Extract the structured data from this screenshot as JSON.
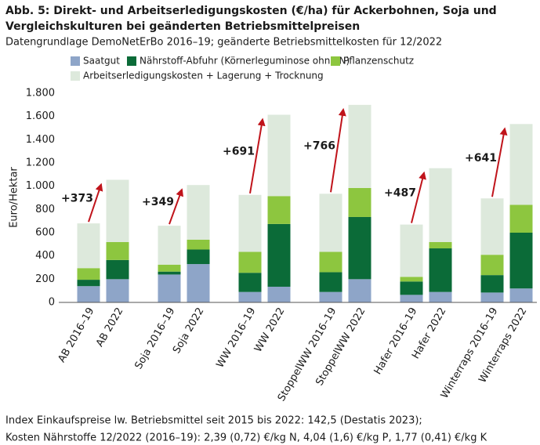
{
  "chart_data": {
    "type": "stacked_bar",
    "title": [
      "Abb. 5: Direkt- und Arbeitserledigungskosten (€/ha) für Ackerbohnen, Soja und",
      "Vergleichskulturen bei geänderten Betriebsmittelpreisen"
    ],
    "subtitle": "Datengrundlage DemoNetErBo 2016–19; geänderte Betriebsmittelkosten für 12/2022",
    "y_label": "Euro/Hektar",
    "categories": [
      "AB 2016–19",
      "AB 2022",
      "Soja 2016–19",
      "Soja 2022",
      "WW 2016–19",
      "WW 2022",
      "StoppelWW 2016–19",
      "StoppelWW 2022",
      "Hafer 2016–19",
      "Hafer 2022",
      "Winterraps 2016–19",
      "Winterraps 2022"
    ],
    "series": [
      {
        "name": "Saatgut",
        "color": "#8ea5c8",
        "values": [
          140,
          200,
          240,
          330,
          90,
          135,
          90,
          200,
          65,
          90,
          85,
          120
        ]
      },
      {
        "name": "Nährstoff-Abfuhr (Körnerleguminose ohne N)",
        "color": "#0b6b38",
        "values": [
          55,
          165,
          25,
          125,
          165,
          540,
          170,
          535,
          115,
          375,
          150,
          480
        ]
      },
      {
        "name": "Pflanzenschutz",
        "color": "#8dc63f",
        "values": [
          100,
          155,
          60,
          85,
          180,
          240,
          175,
          250,
          40,
          55,
          175,
          240
        ]
      },
      {
        "name": "Arbeitserledigungskosten + Lagerung + Trocknung",
        "color": "#dde9dc",
        "values": [
          385,
          535,
          335,
          470,
          490,
          700,
          500,
          715,
          450,
          635,
          485,
          695
        ]
      }
    ],
    "annotations": [
      "+373",
      "+349",
      "+691",
      "+766",
      "+487",
      "+641"
    ],
    "arrow_color": "#c0141b",
    "ylim": [
      0,
      1800
    ],
    "yticks": [
      0,
      200,
      400,
      600,
      800,
      {
        "value": 1000,
        "label": "1.000"
      },
      {
        "value": 1200,
        "label": "1.200"
      },
      {
        "value": 1400,
        "label": "1.400"
      },
      {
        "value": 1600,
        "label": "1.600"
      },
      {
        "value": 1800,
        "label": "1.800"
      }
    ],
    "grid": false,
    "footnotes": [
      "Index Einkaufspreise lw. Betriebsmittel seit 2015 bis 2022: 142,5 (Destatis 2023);",
      "Kosten Nährstoffe 12/2022 (2016–19): 2,39 (0,72) €/kg N, 4,04 (1,6) €/kg P, 1,77 (0,41) €/kg K"
    ]
  }
}
